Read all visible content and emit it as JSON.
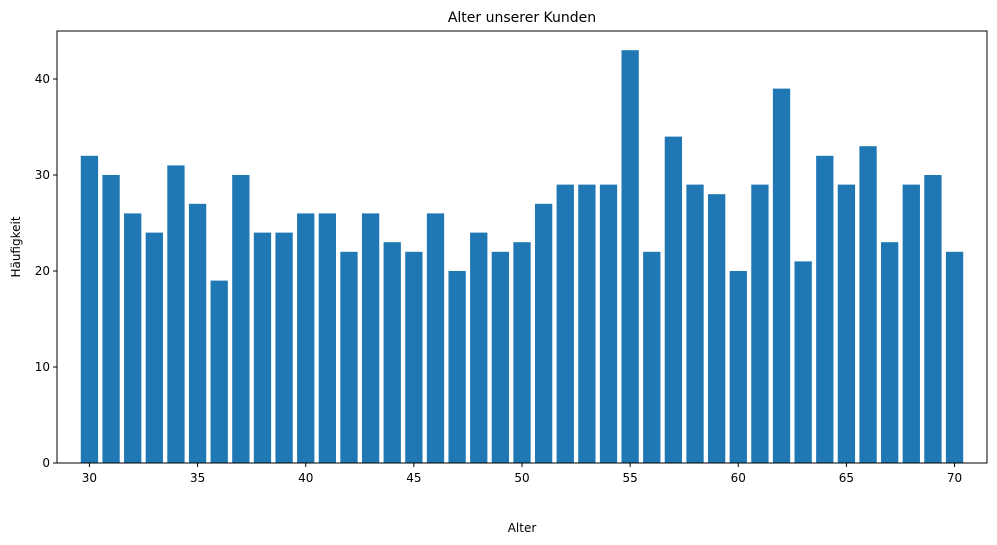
{
  "chart_data": {
    "type": "bar",
    "title": "Alter unserer Kunden",
    "xlabel": "Alter",
    "ylabel": "Häufigkeit",
    "x": [
      30,
      31,
      32,
      33,
      34,
      35,
      36,
      37,
      38,
      39,
      40,
      41,
      42,
      43,
      44,
      45,
      46,
      47,
      48,
      49,
      50,
      51,
      52,
      53,
      54,
      55,
      56,
      57,
      58,
      59,
      60,
      61,
      62,
      63,
      64,
      65,
      66,
      67,
      68,
      69,
      70
    ],
    "values": [
      32,
      30,
      26,
      24,
      31,
      27,
      19,
      30,
      24,
      24,
      26,
      26,
      22,
      26,
      23,
      22,
      26,
      20,
      24,
      22,
      23,
      27,
      29,
      29,
      29,
      43,
      22,
      34,
      29,
      28,
      20,
      29,
      39,
      21,
      32,
      29,
      33,
      23,
      29,
      30,
      22
    ],
    "xlim": [
      28.5,
      71.5
    ],
    "ylim": [
      0,
      45
    ],
    "xticks": [
      30,
      35,
      40,
      45,
      50,
      55,
      60,
      65,
      70
    ],
    "yticks": [
      0,
      10,
      20,
      30,
      40
    ],
    "bar_color": "#1f77b4",
    "grid": false
  }
}
